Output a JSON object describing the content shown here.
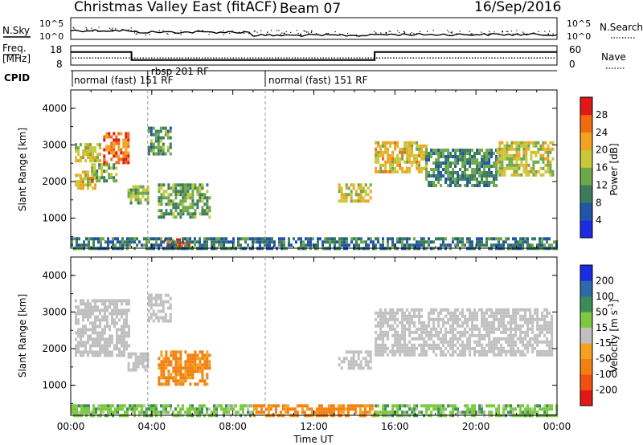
{
  "header": {
    "station": "Christmas Valley East (fitACF)",
    "beam": "Beam 07",
    "date": "16/Sep/2016"
  },
  "noise_panel": {
    "left_label": "N.Sky",
    "right_label": "N.Search",
    "left_ticks": [
      "10^5",
      "10^0"
    ],
    "right_ticks": [
      "10^5",
      "10^0"
    ]
  },
  "freq_panel": {
    "left_label": "Freq.",
    "left_unit": "[MHz]",
    "left_ticks": [
      "18",
      "8"
    ],
    "right_label": "Nave",
    "right_ticks": [
      "60",
      "0"
    ],
    "steps": [
      {
        "t0": 0.0,
        "t1": 3.0,
        "freq": 14.8
      },
      {
        "t0": 3.0,
        "t1": 15.0,
        "freq": 10.6
      },
      {
        "t0": 15.0,
        "t1": 24.0,
        "freq": 14.8
      }
    ],
    "nave_level": 22
  },
  "cpid": {
    "label": "CPID",
    "segments": [
      {
        "text": "normal (fast) 151 RF",
        "t": 0.0
      },
      {
        "text": "rbsp 201 RF",
        "t": 3.8
      },
      {
        "text": "normal (fast) 151 RF",
        "t": 9.6
      }
    ]
  },
  "axes": {
    "xlabel": "Time UT",
    "x_ticks": [
      "00:00",
      "04:00",
      "08:00",
      "12:00",
      "16:00",
      "20:00",
      "00:00"
    ],
    "ylabel": "Slant Range [km]",
    "y_ticks": [
      "1000",
      "2000",
      "3000",
      "4000"
    ],
    "ylim": [
      180,
      4500
    ],
    "xlim": [
      0,
      24
    ]
  },
  "power_bar": {
    "label": "Power [dB]",
    "ticks": [
      "4",
      "8",
      "12",
      "16",
      "20",
      "24",
      "28"
    ],
    "colors": [
      "#1a2ce0",
      "#2255a8",
      "#3c7c5c",
      "#6ea84a",
      "#c8c838",
      "#f2a21e",
      "#f26a10",
      "#e01818"
    ]
  },
  "velocity_bar": {
    "label": "Velocity [m s",
    "label_sup": "-1",
    "label_end": "]",
    "ticks": [
      "200",
      "100",
      "50",
      "15",
      "-15",
      "-50",
      "-100",
      "-200"
    ],
    "colors": [
      "#1a2ce0",
      "#2f6aa8",
      "#3c8c5a",
      "#7cc840",
      "#c0c0c0",
      "#f2a21e",
      "#f28010",
      "#f25010",
      "#e01818"
    ]
  },
  "chart_data": [
    {
      "type": "heatmap",
      "title": "Power",
      "xlabel": "Time UT",
      "ylabel": "Slant Range [km]",
      "xlim": [
        0,
        24
      ],
      "ylim": [
        180,
        4500
      ],
      "colorbar": "Power [dB]",
      "regions": [
        {
          "t0": 0.2,
          "t1": 1.2,
          "r0": 1850,
          "r1": 2300,
          "power": 20
        },
        {
          "t0": 0.2,
          "t1": 1.5,
          "r0": 2600,
          "r1": 3050,
          "power": 17
        },
        {
          "t0": 1.0,
          "t1": 2.2,
          "r0": 2050,
          "r1": 2500,
          "power": 14
        },
        {
          "t0": 1.6,
          "t1": 2.9,
          "r0": 2500,
          "r1": 3350,
          "power": 26
        },
        {
          "t0": 2.8,
          "t1": 3.8,
          "r0": 1400,
          "r1": 1900,
          "power": 15
        },
        {
          "t0": 3.8,
          "t1": 4.9,
          "r0": 2750,
          "r1": 3500,
          "power": 12
        },
        {
          "t0": 4.3,
          "t1": 6.9,
          "r0": 1000,
          "r1": 1950,
          "power": 13
        },
        {
          "t0": 13.2,
          "t1": 14.8,
          "r0": 1500,
          "r1": 1950,
          "power": 18
        },
        {
          "t0": 15.0,
          "t1": 17.5,
          "r0": 2300,
          "r1": 3100,
          "power": 20
        },
        {
          "t0": 17.5,
          "t1": 21.0,
          "r0": 1850,
          "r1": 2900,
          "power": 11
        },
        {
          "t0": 21.0,
          "t1": 23.8,
          "r0": 2200,
          "r1": 3100,
          "power": 18
        },
        {
          "t0": 4.6,
          "t1": 5.8,
          "r0": 250,
          "r1": 450,
          "power": 28
        },
        {
          "t0": 0.0,
          "t1": 24.0,
          "r0": 200,
          "r1": 480,
          "power": 9
        }
      ]
    },
    {
      "type": "heatmap",
      "title": "Velocity",
      "xlabel": "Time UT",
      "ylabel": "Slant Range [km]",
      "xlim": [
        0,
        24
      ],
      "ylim": [
        180,
        4500
      ],
      "colorbar": "Velocity [m s-1]",
      "regions": [
        {
          "t0": 0.2,
          "t1": 2.9,
          "r0": 1850,
          "r1": 3350,
          "velocity": 0
        },
        {
          "t0": 2.8,
          "t1": 3.8,
          "r0": 1400,
          "r1": 1900,
          "velocity": 0
        },
        {
          "t0": 3.8,
          "t1": 4.9,
          "r0": 2750,
          "r1": 3500,
          "velocity": 0
        },
        {
          "t0": 4.3,
          "t1": 6.9,
          "r0": 1000,
          "r1": 1950,
          "velocity": -40
        },
        {
          "t0": 13.2,
          "t1": 14.8,
          "r0": 1500,
          "r1": 1950,
          "velocity": 0
        },
        {
          "t0": 15.0,
          "t1": 23.8,
          "r0": 1850,
          "r1": 3100,
          "velocity": 0
        },
        {
          "t0": 0.0,
          "t1": 9.0,
          "r0": 200,
          "r1": 480,
          "velocity": 25
        },
        {
          "t0": 9.0,
          "t1": 15.0,
          "r0": 200,
          "r1": 480,
          "velocity": -40
        },
        {
          "t0": 15.0,
          "t1": 24.0,
          "r0": 200,
          "r1": 480,
          "velocity": 25
        }
      ]
    }
  ]
}
